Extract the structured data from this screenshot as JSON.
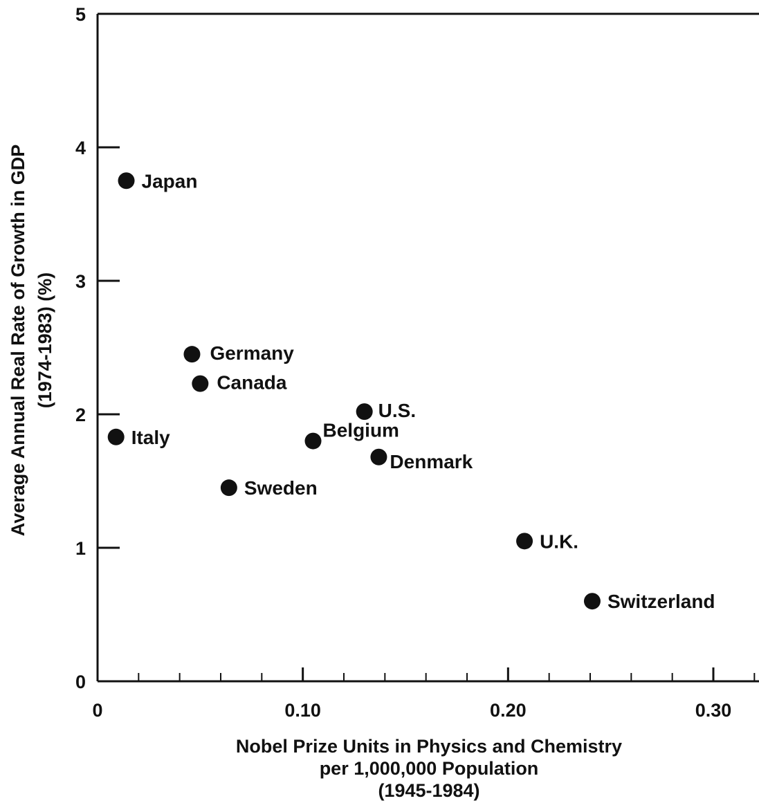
{
  "chart_data": {
    "type": "scatter",
    "title": "",
    "xlabel": [
      "Nobel Prize Units in Physics and Chemistry",
      "per 1,000,000 Population",
      "(1945-1984)"
    ],
    "ylabel": [
      "Average Annual Real Rate of Growth in GDP",
      "(1974-1983) (%)"
    ],
    "xlim": [
      0,
      0.32
    ],
    "ylim": [
      0,
      5
    ],
    "xticks": [
      {
        "value": 0,
        "label": "0"
      },
      {
        "value": 0.1,
        "label": "0.10"
      },
      {
        "value": 0.2,
        "label": "0.20"
      },
      {
        "value": 0.3,
        "label": "0.30"
      }
    ],
    "yticks": [
      {
        "value": 0,
        "label": "0"
      },
      {
        "value": 1,
        "label": "1"
      },
      {
        "value": 2,
        "label": "2"
      },
      {
        "value": 3,
        "label": "3"
      },
      {
        "value": 4,
        "label": "4"
      },
      {
        "value": 5,
        "label": "5"
      }
    ],
    "grid": false,
    "legend": "none",
    "points": [
      {
        "label": "Japan",
        "x": 0.014,
        "y": 3.75
      },
      {
        "label": "Germany",
        "x": 0.046,
        "y": 2.45
      },
      {
        "label": "Canada",
        "x": 0.05,
        "y": 2.23
      },
      {
        "label": "Italy",
        "x": 0.009,
        "y": 1.83
      },
      {
        "label": "Sweden",
        "x": 0.064,
        "y": 1.45
      },
      {
        "label": "Belgium",
        "x": 0.105,
        "y": 1.8
      },
      {
        "label": "U.S.",
        "x": 0.13,
        "y": 2.02
      },
      {
        "label": "Denmark",
        "x": 0.137,
        "y": 1.68
      },
      {
        "label": "U.K.",
        "x": 0.208,
        "y": 1.05
      },
      {
        "label": "Switzerland",
        "x": 0.241,
        "y": 0.6
      }
    ],
    "marker_color": "#111111"
  }
}
